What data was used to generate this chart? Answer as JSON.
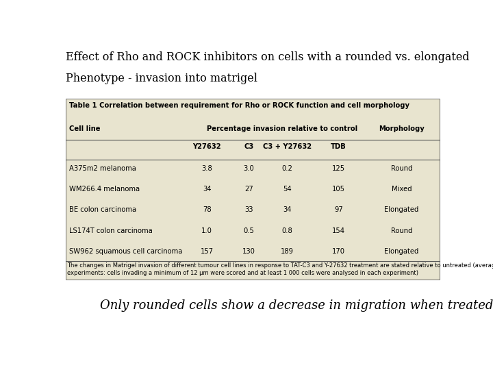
{
  "title_line1": "Effect of Rho and ROCK inhibitors on cells with a rounded vs. elongated",
  "title_line2": "Phenotype - invasion into matrigel",
  "table_title": "Table 1 Correlation between requirement for Rho or ROCK function and cell morphology",
  "sub_header_label": "Percentage invasion relative to control",
  "col_header_1": "Cell line",
  "col_header_morphology": "Morphology",
  "sub_cols": [
    "Y27632",
    "C3",
    "C3 + Y27632",
    "TDB"
  ],
  "rows": [
    [
      "A375m2 melanoma",
      "3.8",
      "3.0",
      "0.2",
      "125",
      "Round"
    ],
    [
      "WM266.4 melanoma",
      "34",
      "27",
      "54",
      "105",
      "Mixed"
    ],
    [
      "BE colon carcinoma",
      "78",
      "33",
      "34",
      "97",
      "Elongated"
    ],
    [
      "LS174T colon carcinoma",
      "1.0",
      "0.5",
      "0.8",
      "154",
      "Round"
    ],
    [
      "SW962 squamous cell carcinoma",
      "157",
      "130",
      "189",
      "170",
      "Elongated"
    ]
  ],
  "footnote_line1": "The changes in Matrigel invasion of different tumour cell lines in response to TAT-C3 and Y-27632 treatment are stated relative to untreated (average of three",
  "footnote_line2": "experiments: cells invading a minimum of 12 μm were scored and at least 1 000 cells were analysed in each experiment)",
  "conclusion": "Only rounded cells show a decrease in migration when treated.",
  "white_bg": "#ffffff",
  "table_bg": "#e8e4cf",
  "line_color": "#555555",
  "text_color": "#000000"
}
